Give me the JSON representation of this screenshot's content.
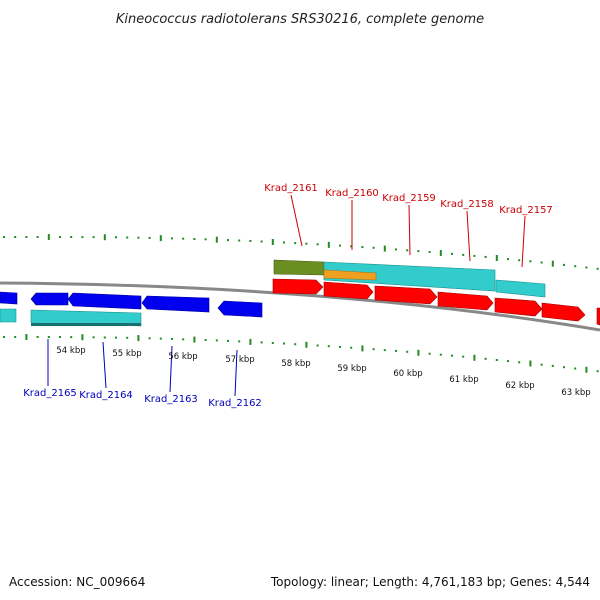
{
  "title": "Kineococcus radiotolerans SRS30216, complete genome",
  "footer": {
    "accession": "Accession: NC_009664",
    "summary": "Topology: linear; Length: 4,761,183 bp; Genes: 4,544"
  },
  "colors": {
    "forward_cds": "#ff0000",
    "reverse_cds": "#0000ee",
    "gene": "#33cccc",
    "rna_or_feature": "#6b8e23",
    "other_feature": "#f0a020",
    "backbone": "#888888",
    "tick": "#228b22"
  },
  "scale_labels": [
    "54 kbp",
    "55 kbp",
    "56 kbp",
    "57 kbp",
    "58 kbp",
    "59 kbp",
    "60 kbp",
    "61 kbp",
    "62 kbp",
    "63 kbp"
  ],
  "forward_genes": [
    "Krad_2161",
    "Krad_2160",
    "Krad_2159",
    "Krad_2158",
    "Krad_2157"
  ],
  "reverse_genes": [
    "Krad_2165",
    "Krad_2164",
    "Krad_2163",
    "Krad_2162"
  ]
}
